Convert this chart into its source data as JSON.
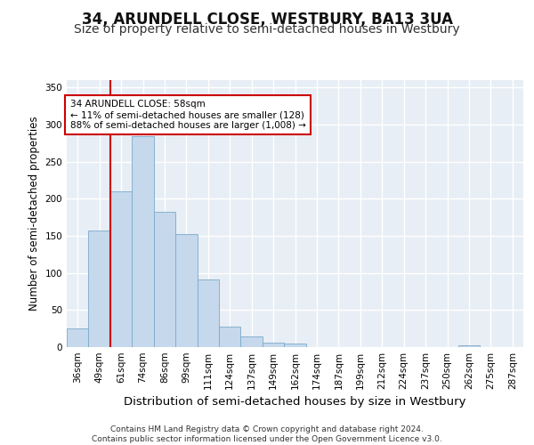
{
  "title": "34, ARUNDELL CLOSE, WESTBURY, BA13 3UA",
  "subtitle": "Size of property relative to semi-detached houses in Westbury",
  "xlabel": "Distribution of semi-detached houses by size in Westbury",
  "ylabel": "Number of semi-detached properties",
  "bar_labels": [
    "36sqm",
    "49sqm",
    "61sqm",
    "74sqm",
    "86sqm",
    "99sqm",
    "111sqm",
    "124sqm",
    "137sqm",
    "149sqm",
    "162sqm",
    "174sqm",
    "187sqm",
    "199sqm",
    "212sqm",
    "224sqm",
    "237sqm",
    "250sqm",
    "262sqm",
    "275sqm",
    "287sqm"
  ],
  "bar_values": [
    25,
    157,
    210,
    285,
    183,
    152,
    91,
    28,
    14,
    6,
    5,
    0,
    0,
    0,
    0,
    0,
    0,
    0,
    3,
    0,
    0
  ],
  "bar_color": "#c5d8ec",
  "bar_edge_color": "#7aaaca",
  "bg_color": "#e8eef5",
  "grid_color": "#ffffff",
  "vline_x": 1.5,
  "vline_color": "#cc0000",
  "annotation_text": "34 ARUNDELL CLOSE: 58sqm\n← 11% of semi-detached houses are smaller (128)\n88% of semi-detached houses are larger (1,008) →",
  "annotation_box_color": "#cc0000",
  "ylim": [
    0,
    360
  ],
  "yticks": [
    0,
    50,
    100,
    150,
    200,
    250,
    300,
    350
  ],
  "footer": "Contains HM Land Registry data © Crown copyright and database right 2024.\nContains public sector information licensed under the Open Government Licence v3.0.",
  "title_fontsize": 12,
  "subtitle_fontsize": 10,
  "tick_fontsize": 7.5,
  "ylabel_fontsize": 8.5,
  "xlabel_fontsize": 9.5,
  "footer_fontsize": 6.5
}
